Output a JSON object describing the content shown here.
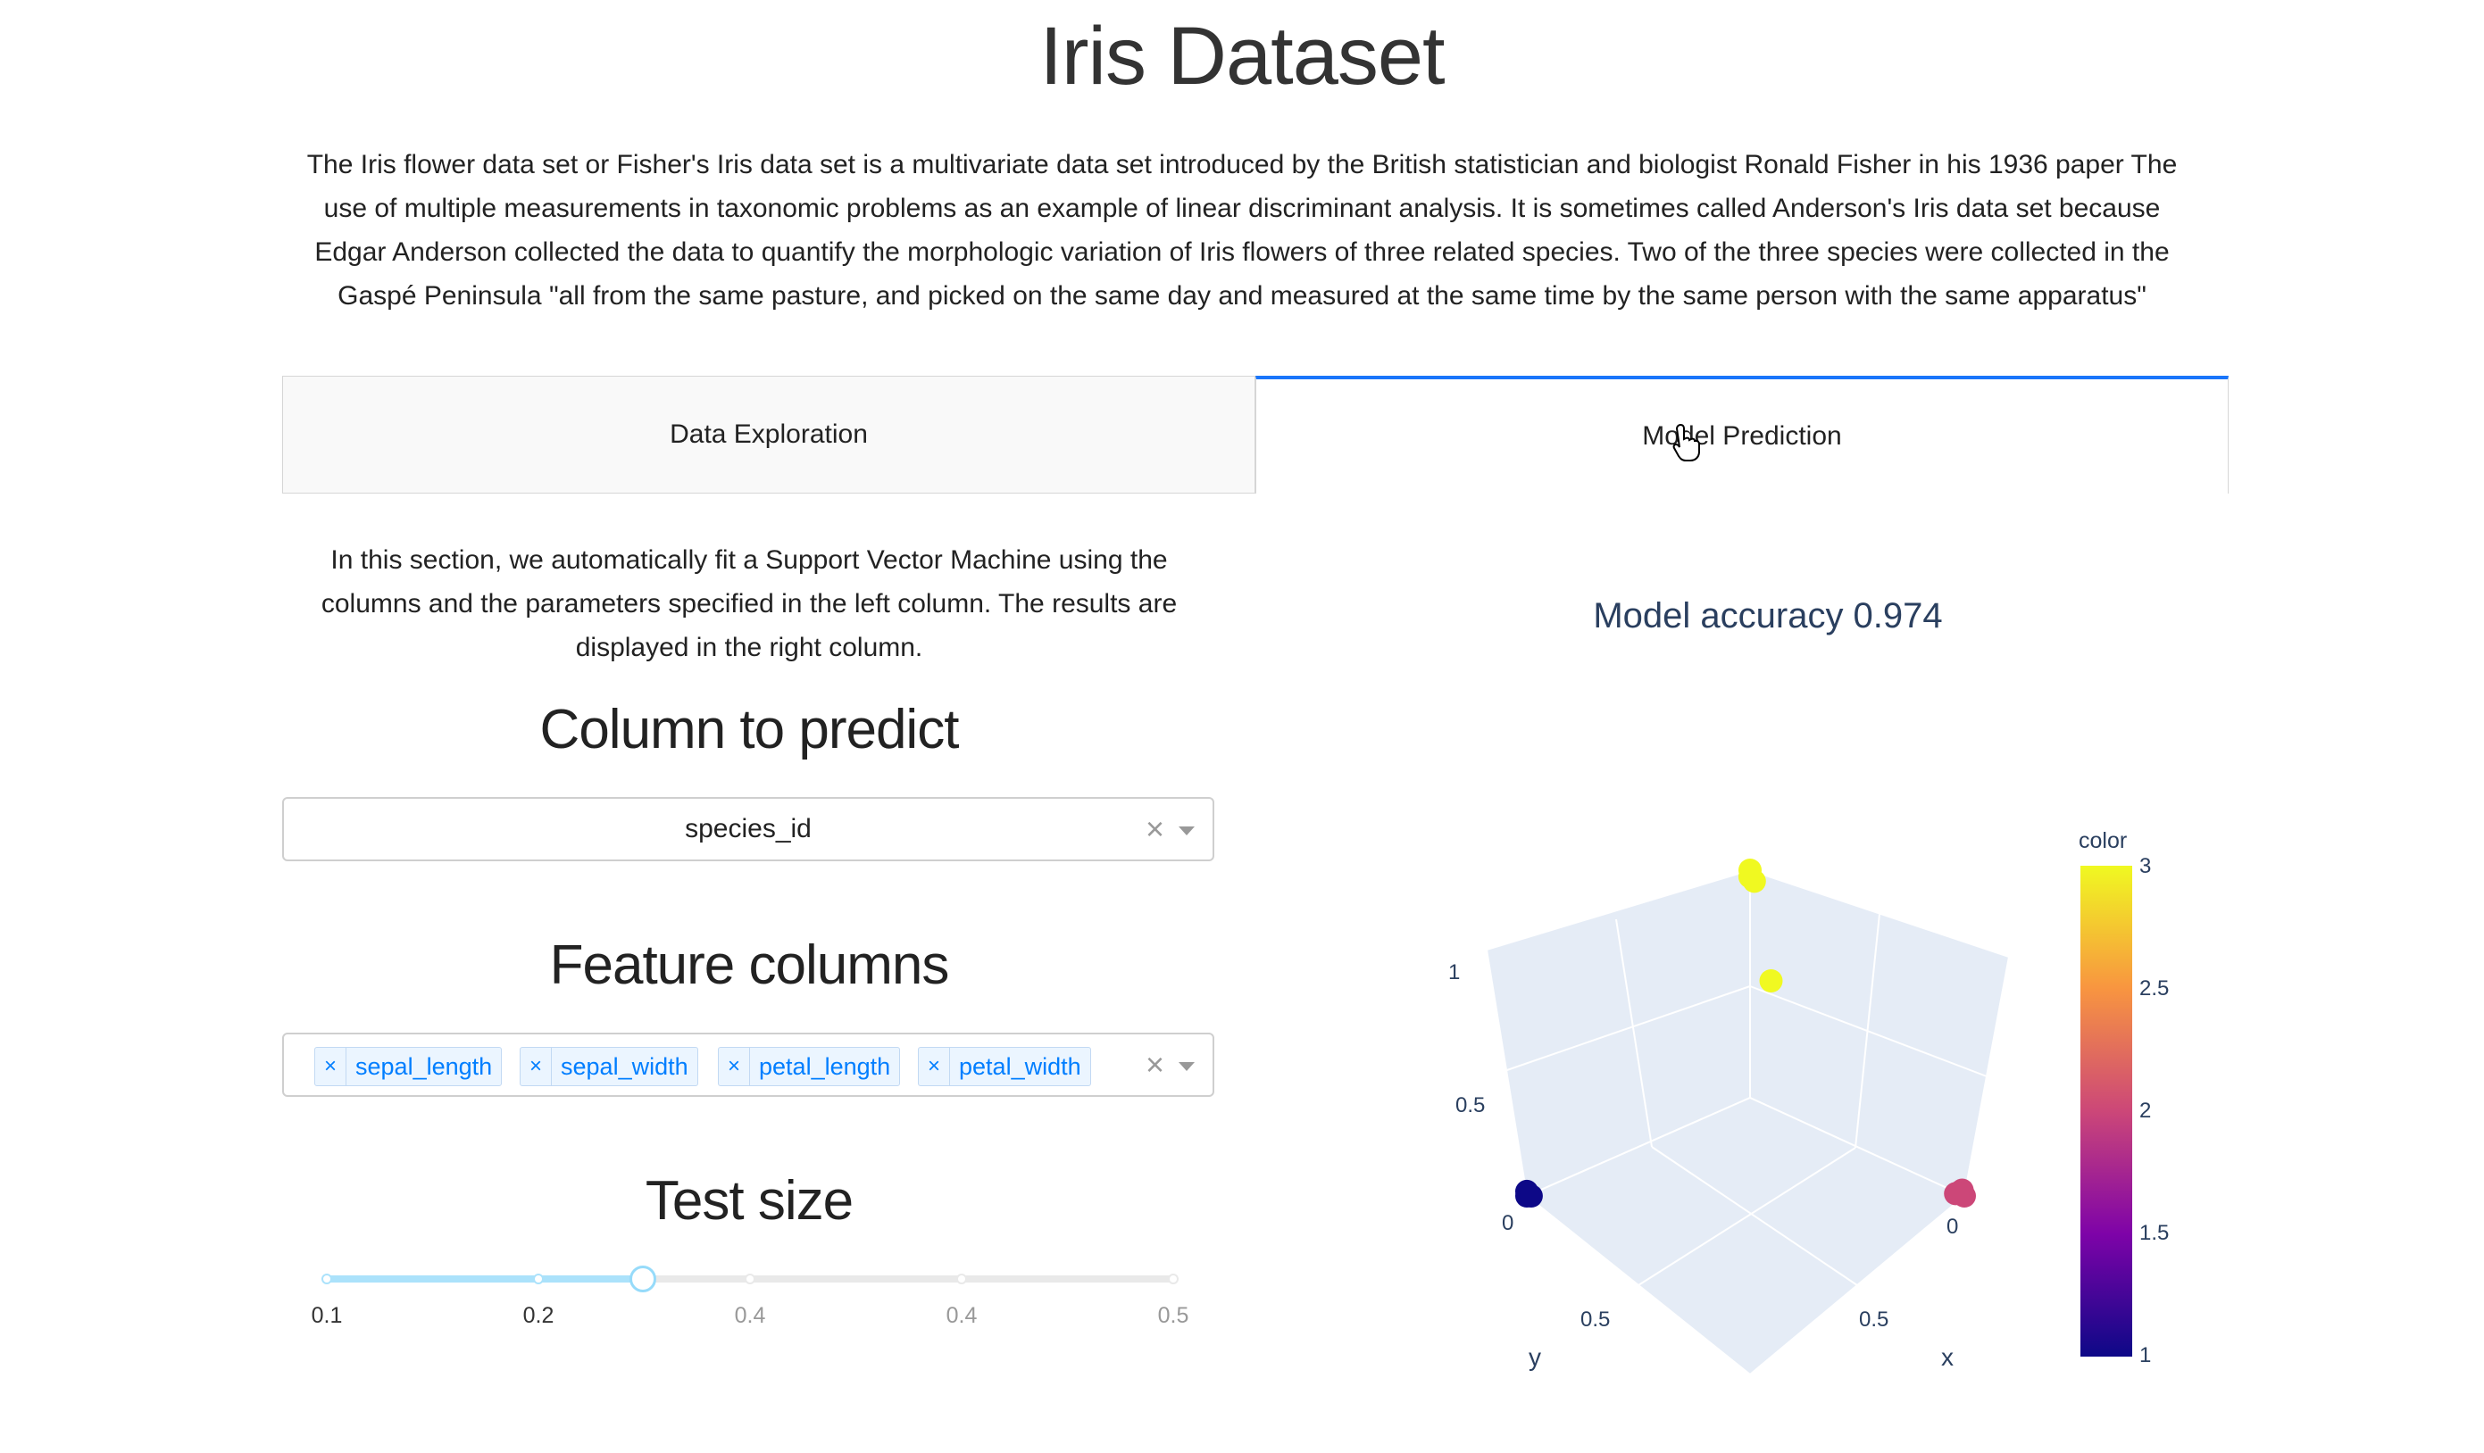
{
  "page": {
    "title": "Iris Dataset",
    "intro": "The Iris flower data set or Fisher's Iris data set is a multivariate data set introduced by the British statistician and biologist Ronald Fisher in his 1936 paper The use of multiple measurements in taxonomic problems as an example of linear discriminant analysis. It is sometimes called Anderson's Iris data set because Edgar Anderson collected the data to quantify the morphologic variation of Iris flowers of three related species. Two of the three species were collected in the Gaspé Peninsula \"all from the same pasture, and picked on the same day and measured at the same time by the same person with the same apparatus\""
  },
  "tabs": [
    {
      "label": "Data Exploration",
      "selected": false
    },
    {
      "label": "Model Prediction",
      "selected": true
    }
  ],
  "left": {
    "description": "In this section, we automatically fit a Support Vector Machine using the columns and the parameters specified in the left column. The results are displayed in the right column.",
    "column_to_predict": {
      "heading": "Column to predict",
      "value": "species_id",
      "clear": "×"
    },
    "feature_columns": {
      "heading": "Feature columns",
      "chips": [
        "sepal_length",
        "sepal_width",
        "petal_length",
        "petal_width"
      ],
      "chip_remove": "×",
      "clear": "×"
    },
    "test_size": {
      "heading": "Test size",
      "value": 0.25,
      "marks": [
        "0.1",
        "0.2",
        "0.4",
        "0.4",
        "0.5"
      ]
    }
  },
  "right": {
    "accuracy_text": "Model accuracy 0.974"
  },
  "chart_data": {
    "type": "scatter",
    "dimensions": "3d",
    "axes": {
      "x": {
        "label": "x",
        "ticks": [
          "0",
          "0.5"
        ]
      },
      "y": {
        "label": "y",
        "ticks": [
          "0",
          "0.5"
        ]
      },
      "z": {
        "label": "",
        "ticks": [
          "0.5",
          "1"
        ]
      }
    },
    "colorbar": {
      "title": "color",
      "ticks": [
        "1",
        "1.5",
        "2",
        "2.5",
        "3"
      ],
      "range": [
        1,
        3
      ],
      "colorscale": [
        "#0d0887",
        "#7e03a8",
        "#cc4778",
        "#f89540",
        "#f0f921"
      ]
    },
    "points": [
      {
        "x": 0,
        "y": 1,
        "z": 0,
        "color": 1
      },
      {
        "x": 0,
        "y": 1,
        "z": 0.02,
        "color": 1
      },
      {
        "x": 0.01,
        "y": 0.99,
        "z": 0,
        "color": 1
      },
      {
        "x": 1,
        "y": 0,
        "z": 0,
        "color": 2
      },
      {
        "x": 0.98,
        "y": 0.02,
        "z": 0.01,
        "color": 2
      },
      {
        "x": 1,
        "y": 0.01,
        "z": 0.03,
        "color": 2
      },
      {
        "x": 0.97,
        "y": 0,
        "z": 0,
        "color": 2
      },
      {
        "x": 0,
        "y": 0,
        "z": 1,
        "color": 3
      },
      {
        "x": 0.01,
        "y": 0.01,
        "z": 0.98,
        "color": 3
      },
      {
        "x": 0.02,
        "y": 0,
        "z": 0.96,
        "color": 3
      },
      {
        "x": 0.15,
        "y": 0.05,
        "z": 0.6,
        "color": 3
      }
    ]
  },
  "colors": {
    "accent": "#1975fa",
    "chip_text": "#007eff",
    "chip_bg": "#ebf5ff",
    "slider_fill": "#abe2fb",
    "scene_bg": "#e5ecf6"
  }
}
